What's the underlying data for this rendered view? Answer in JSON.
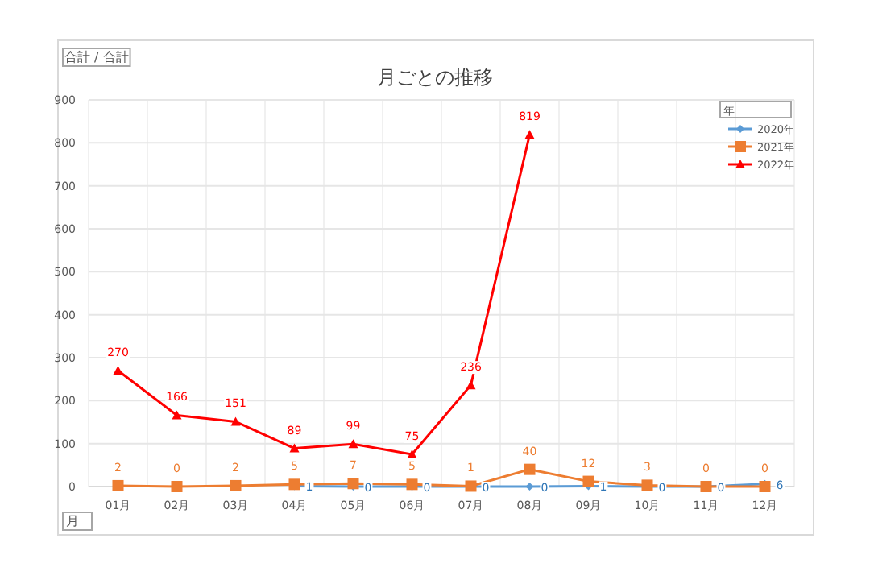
{
  "chart_data": {
    "type": "line",
    "title": "月ごとの推移",
    "xlabel": "月",
    "legend_title": "年",
    "annotations": [
      "合計 / 合計"
    ],
    "categories": [
      "01月",
      "02月",
      "03月",
      "04月",
      "05月",
      "06月",
      "07月",
      "08月",
      "09月",
      "10月",
      "11月",
      "12月"
    ],
    "series": [
      {
        "name": "2020年",
        "color": "#5b9bd5",
        "marker": "diamond",
        "values": [
          null,
          null,
          null,
          1,
          0,
          0,
          0,
          0,
          1,
          0,
          0,
          6
        ]
      },
      {
        "name": "2021年",
        "color": "#ed7d31",
        "marker": "square",
        "values": [
          2,
          0,
          2,
          5,
          7,
          5,
          1,
          40,
          12,
          3,
          0,
          0
        ]
      },
      {
        "name": "2022年",
        "color": "#ff0000",
        "marker": "triangle",
        "values": [
          270,
          166,
          151,
          89,
          99,
          75,
          236,
          819,
          null,
          null,
          null,
          null
        ]
      }
    ],
    "ylim": [
      0,
      900
    ],
    "yticks": [
      0,
      100,
      200,
      300,
      400,
      500,
      600,
      700,
      800,
      900
    ],
    "grid": true,
    "legend": "top right",
    "data_labels": true,
    "line_style": "solid"
  }
}
